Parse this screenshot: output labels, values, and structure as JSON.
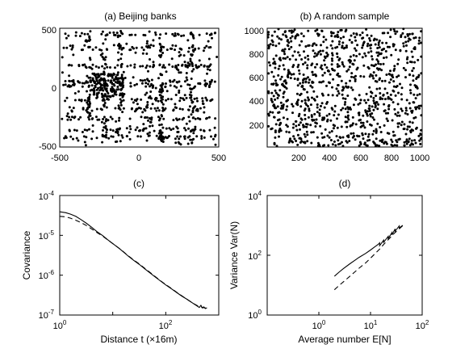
{
  "chart_data": [
    {
      "type": "scatter",
      "title": "(a) Beijing banks",
      "xlabel": "",
      "ylabel": "",
      "xlim": [
        -500,
        500
      ],
      "ylim": [
        -500,
        500
      ],
      "x_ticks": [
        "-500",
        "0",
        "500"
      ],
      "y_ticks": [
        "500",
        "0",
        "-500"
      ],
      "point_count_estimate": 1000,
      "marker": "black dot",
      "notes": "dense points along horizontal street-like bands"
    },
    {
      "type": "scatter",
      "title": "(b) A random sample",
      "xlabel": "",
      "ylabel": "",
      "xlim": [
        0,
        1000
      ],
      "ylim": [
        0,
        1000
      ],
      "x_ticks": [
        "200",
        "400",
        "600",
        "800",
        "1000"
      ],
      "y_ticks": [
        "1000",
        "800",
        "600",
        "400",
        "200"
      ],
      "point_count_estimate": 1000,
      "marker": "black dot"
    },
    {
      "type": "line",
      "title": "(c)",
      "xlabel": "Distance t (×16m)",
      "ylabel": "Covariance",
      "xscale": "log",
      "yscale": "log",
      "xlim": [
        1,
        1000
      ],
      "ylim": [
        1e-07,
        0.0001
      ],
      "x_ticks": [
        {
          "base": "10",
          "exp": "0"
        },
        {
          "base": "10",
          "exp": "2"
        }
      ],
      "y_ticks": [
        {
          "base": "10",
          "exp": "-4"
        },
        {
          "base": "10",
          "exp": "-5"
        },
        {
          "base": "10",
          "exp": "-6"
        },
        {
          "base": "10",
          "exp": "-7"
        }
      ],
      "series": [
        {
          "style": "solid",
          "x": [
            1,
            1.3,
            1.6,
            2,
            2.5,
            3.2,
            4,
            5,
            6.5,
            8,
            10,
            13,
            16,
            20,
            25,
            32,
            40,
            50,
            65,
            80,
            100,
            130,
            160,
            200,
            250,
            320,
            400,
            430,
            460,
            490,
            520,
            560,
            600
          ],
          "y": [
            3.9e-05,
            3.7e-05,
            3.4e-05,
            3e-05,
            2.5e-05,
            2e-05,
            1.6e-05,
            1.25e-05,
            9.8e-06,
            7.8e-06,
            6.2e-06,
            4.8e-06,
            3.8e-06,
            2.95e-06,
            2.35e-06,
            1.85e-06,
            1.45e-06,
            1.15e-06,
            8.8e-07,
            7.1e-07,
            5.7e-07,
            4.5e-07,
            3.7e-07,
            3e-07,
            2.5e-07,
            2e-07,
            1.65e-07,
            1.55e-07,
            1.75e-07,
            1.5e-07,
            1.6e-07,
            1.45e-07,
            1.52e-07
          ]
        },
        {
          "style": "dashed",
          "x": [
            1,
            1.3,
            1.6,
            2,
            2.5,
            3.2,
            4,
            5,
            6.5,
            8,
            10,
            13,
            16,
            20,
            25,
            32,
            40,
            50,
            65,
            80,
            100,
            130,
            160,
            200,
            250,
            320,
            400,
            450,
            500,
            550,
            600
          ],
          "y": [
            3e-05,
            2.9e-05,
            2.7e-05,
            2.4e-05,
            2.1e-05,
            1.75e-05,
            1.45e-05,
            1.18e-05,
            9.5e-06,
            7.7e-06,
            6.2e-06,
            4.8e-06,
            3.85e-06,
            3e-06,
            2.4e-06,
            1.9e-06,
            1.5e-06,
            1.18e-06,
            9e-07,
            7.2e-07,
            5.8e-07,
            4.6e-07,
            3.75e-07,
            3.05e-07,
            2.5e-07,
            2e-07,
            1.7e-07,
            1.6e-07,
            1.55e-07,
            1.5e-07,
            1.5e-07
          ]
        }
      ]
    },
    {
      "type": "line",
      "title": "(d)",
      "xlabel": "Average number E[N]",
      "ylabel": "Variance Var(N)",
      "xscale": "log",
      "yscale": "log",
      "xlim": [
        0.1,
        100
      ],
      "ylim": [
        1,
        10000
      ],
      "x_ticks": [
        {
          "base": "10",
          "exp": "0"
        },
        {
          "base": "10",
          "exp": "1"
        },
        {
          "base": "10",
          "exp": "2"
        }
      ],
      "y_ticks": [
        {
          "base": "10",
          "exp": "4"
        },
        {
          "base": "10",
          "exp": "2"
        },
        {
          "base": "10",
          "exp": "0"
        }
      ],
      "series": [
        {
          "style": "solid",
          "x": [
            2,
            2.5,
            3,
            4,
            5,
            6,
            8,
            10,
            12,
            14,
            15,
            15,
            18,
            18,
            22,
            22,
            26,
            26,
            30,
            30,
            36,
            36,
            42
          ],
          "y": [
            20,
            28,
            36,
            52,
            68,
            85,
            115,
            150,
            190,
            230,
            260,
            210,
            320,
            270,
            430,
            360,
            580,
            480,
            760,
            640,
            960,
            820,
            1000
          ]
        },
        {
          "style": "dashed",
          "x": [
            2,
            2.5,
            3,
            4,
            5,
            6,
            8,
            10,
            12,
            15,
            18,
            22,
            26,
            30,
            36,
            42
          ],
          "y": [
            7,
            10,
            13,
            20,
            28,
            37,
            55,
            80,
            110,
            160,
            230,
            330,
            450,
            580,
            760,
            980
          ]
        }
      ]
    }
  ]
}
